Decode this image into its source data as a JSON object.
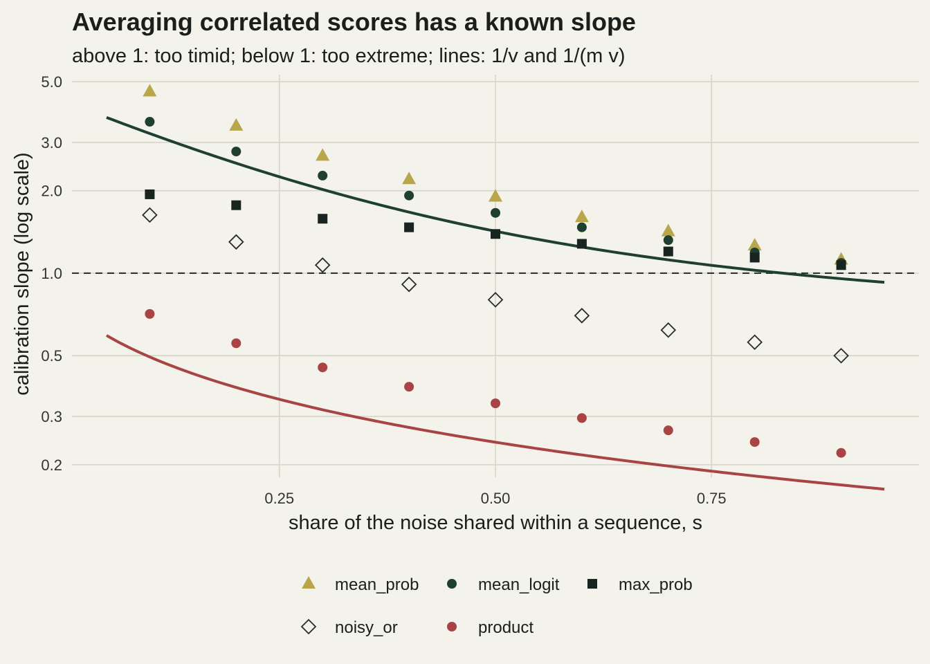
{
  "chart_data": {
    "type": "scatter",
    "title": "Averaging correlated scores has a known slope",
    "subtitle": "above 1: too timid; below 1: too extreme; lines: 1/v and 1/(m v)",
    "xlabel": "share of the noise shared within a sequence, s",
    "ylabel": "calibration slope (log scale)",
    "y_scale": "log",
    "xlim": [
      0.01,
      0.99
    ],
    "ylim": [
      0.18,
      5.3
    ],
    "x_ticks": [
      0.25,
      0.5,
      0.75
    ],
    "x_tick_labels": [
      "0.25",
      "0.50",
      "0.75"
    ],
    "y_ticks": [
      0.2,
      0.3,
      0.5,
      1.0,
      2.0,
      3.0,
      5.0
    ],
    "y_tick_labels": [
      "0.2",
      "0.3",
      "0.5",
      "1.0",
      "2.0",
      "3.0",
      "5.0"
    ],
    "grid": true,
    "reference_line": {
      "y": 1.0,
      "style": "dashed",
      "color": "#333333"
    },
    "legend_position": "bottom",
    "x": [
      0.1,
      0.2,
      0.3,
      0.4,
      0.5,
      0.6,
      0.7,
      0.8,
      0.9
    ],
    "series": [
      {
        "name": "mean_prob",
        "marker": "triangle",
        "color": "#b9a54a",
        "values": [
          4.6,
          3.45,
          2.68,
          2.2,
          1.9,
          1.6,
          1.42,
          1.26,
          1.12
        ]
      },
      {
        "name": "mean_logit",
        "marker": "circle",
        "color": "#1f4030",
        "values": [
          3.57,
          2.78,
          2.27,
          1.92,
          1.66,
          1.47,
          1.32,
          1.19,
          1.09
        ]
      },
      {
        "name": "max_prob",
        "marker": "square",
        "color": "#172420",
        "values": [
          1.94,
          1.77,
          1.58,
          1.47,
          1.39,
          1.28,
          1.2,
          1.14,
          1.07
        ]
      },
      {
        "name": "noisy_or",
        "marker": "diamond-open",
        "color": "#2a2a2a",
        "values": [
          1.63,
          1.3,
          1.07,
          0.91,
          0.8,
          0.7,
          0.62,
          0.56,
          0.5
        ]
      },
      {
        "name": "product",
        "marker": "circle",
        "color": "#a84444",
        "values": [
          0.71,
          0.555,
          0.453,
          0.385,
          0.335,
          0.296,
          0.267,
          0.242,
          0.221
        ]
      }
    ],
    "curves": [
      {
        "color": "#1f4030",
        "x_range": [
          0.05,
          0.95
        ],
        "formula": "1/v"
      },
      {
        "color": "#a84444",
        "x_range": [
          0.05,
          0.95
        ],
        "formula": "1/(m v)"
      }
    ]
  }
}
